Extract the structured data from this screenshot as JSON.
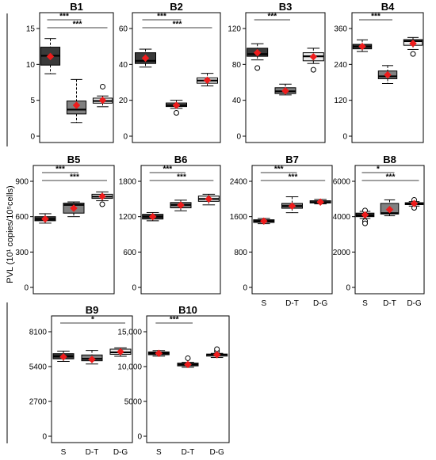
{
  "figure": {
    "ylabel": "PVL (10¹ copies/10⁵cells)"
  },
  "chart_data": [
    {
      "type": "box",
      "title": "B1",
      "ylim": [
        0,
        15
      ],
      "yticks": [
        0,
        5,
        10,
        15
      ],
      "yticklabels": [
        "0",
        "5",
        "10",
        "15"
      ],
      "categories": [],
      "boxes": [
        {
          "whislo": 8.7,
          "q1": 9.9,
          "med": 11.2,
          "q3": 12.4,
          "whishi": 13.6,
          "mean": 11.1,
          "outliers": [],
          "fill": "#3a3a3a"
        },
        {
          "whislo": 1.9,
          "q1": 3.1,
          "med": 3.7,
          "q3": 4.9,
          "whishi": 7.9,
          "mean": 4.3,
          "outliers": [],
          "fill": "#808080"
        },
        {
          "whislo": 4.1,
          "q1": 4.6,
          "med": 4.9,
          "q3": 5.3,
          "whishi": 5.6,
          "mean": 5.0,
          "outliers": [
            6.9
          ],
          "fill": "#e8e8e8"
        }
      ],
      "comparisons": [
        {
          "from": 0,
          "to": 1,
          "label": "***"
        },
        {
          "from": 0,
          "to": 2,
          "label": "***"
        }
      ]
    },
    {
      "type": "box",
      "title": "B2",
      "ylim": [
        0,
        60
      ],
      "yticks": [
        0,
        20,
        40,
        60
      ],
      "yticklabels": [
        "0",
        "20",
        "40",
        "60"
      ],
      "categories": [],
      "boxes": [
        {
          "whislo": 38.5,
          "q1": 40.5,
          "med": 42,
          "q3": 46.5,
          "whishi": 48.5,
          "mean": 43.5,
          "outliers": [],
          "fill": "#3a3a3a"
        },
        {
          "whislo": 15.5,
          "q1": 16.5,
          "med": 17.3,
          "q3": 18.5,
          "whishi": 20,
          "mean": 17.2,
          "outliers": [
            13
          ],
          "fill": "#808080"
        },
        {
          "whislo": 28,
          "q1": 29.5,
          "med": 31,
          "q3": 32.5,
          "whishi": 35,
          "mean": 31.2,
          "outliers": [],
          "fill": "#e8e8e8"
        }
      ],
      "comparisons": [
        {
          "from": 0,
          "to": 1,
          "label": "***"
        },
        {
          "from": 0,
          "to": 2,
          "label": "***"
        }
      ]
    },
    {
      "type": "box",
      "title": "B3",
      "ylim": [
        0,
        120
      ],
      "yticks": [
        0,
        40,
        80,
        120
      ],
      "yticklabels": [
        "0",
        "40",
        "80",
        "120"
      ],
      "categories": [],
      "boxes": [
        {
          "whislo": 85,
          "q1": 89,
          "med": 91.5,
          "q3": 98,
          "whishi": 103,
          "mean": 93,
          "outliers": [
            76
          ],
          "fill": "#3a3a3a"
        },
        {
          "whislo": 46,
          "q1": 47.5,
          "med": 50,
          "q3": 54,
          "whishi": 58,
          "mean": 50.5,
          "outliers": [],
          "fill": "#808080"
        },
        {
          "whislo": 81,
          "q1": 84,
          "med": 89,
          "q3": 93,
          "whishi": 98,
          "mean": 88.5,
          "outliers": [
            74
          ],
          "fill": "#e8e8e8"
        }
      ],
      "comparisons": [
        {
          "from": 0,
          "to": 1,
          "label": "***"
        }
      ]
    },
    {
      "type": "box",
      "title": "B4",
      "ylim": [
        0,
        360
      ],
      "yticks": [
        0,
        120,
        240,
        360
      ],
      "yticklabels": [
        "0",
        "120",
        "240",
        "360"
      ],
      "categories": [],
      "boxes": [
        {
          "whislo": 283,
          "q1": 292,
          "med": 300,
          "q3": 307,
          "whishi": 322,
          "mean": 300,
          "outliers": [],
          "fill": "#3a3a3a"
        },
        {
          "whislo": 176,
          "q1": 192,
          "med": 200,
          "q3": 218,
          "whishi": 236,
          "mean": 205,
          "outliers": [],
          "fill": "#808080"
        },
        {
          "whislo": 290,
          "q1": 304,
          "med": 318,
          "q3": 323,
          "whishi": 330,
          "mean": 310,
          "outliers": [
            275
          ],
          "fill": "#e8e8e8"
        }
      ],
      "comparisons": [
        {
          "from": 0,
          "to": 1,
          "label": "***"
        }
      ]
    },
    {
      "type": "box",
      "title": "B5",
      "ylim": [
        0,
        900
      ],
      "yticks": [
        0,
        300,
        600,
        900
      ],
      "yticklabels": [
        "0",
        "300",
        "600",
        "900"
      ],
      "categories": [],
      "boxes": [
        {
          "whislo": 545,
          "q1": 565,
          "med": 580,
          "q3": 600,
          "whishi": 625,
          "mean": 580,
          "outliers": [],
          "fill": "#3a3a3a"
        },
        {
          "whislo": 600,
          "q1": 630,
          "med": 700,
          "q3": 715,
          "whishi": 725,
          "mean": 672,
          "outliers": [],
          "fill": "#808080"
        },
        {
          "whislo": 735,
          "q1": 755,
          "med": 770,
          "q3": 790,
          "whishi": 810,
          "mean": 772,
          "outliers": [
            705
          ],
          "fill": "#e8e8e8"
        }
      ],
      "comparisons": [
        {
          "from": 0,
          "to": 1,
          "label": "***"
        },
        {
          "from": 0,
          "to": 2,
          "label": "***"
        }
      ]
    },
    {
      "type": "box",
      "title": "B6",
      "ylim": [
        0,
        1800
      ],
      "yticks": [
        0,
        600,
        1200,
        1800
      ],
      "yticklabels": [
        "0",
        "600",
        "1200",
        "1800"
      ],
      "categories": [],
      "boxes": [
        {
          "whislo": 1130,
          "q1": 1160,
          "med": 1200,
          "q3": 1240,
          "whishi": 1270,
          "mean": 1200,
          "outliers": [],
          "fill": "#3a3a3a"
        },
        {
          "whislo": 1300,
          "q1": 1350,
          "med": 1400,
          "q3": 1440,
          "whishi": 1480,
          "mean": 1395,
          "outliers": [],
          "fill": "#808080"
        },
        {
          "whislo": 1400,
          "q1": 1460,
          "med": 1500,
          "q3": 1550,
          "whishi": 1580,
          "mean": 1500,
          "outliers": [],
          "fill": "#e8e8e8"
        }
      ],
      "comparisons": [
        {
          "from": 0,
          "to": 1,
          "label": "***"
        },
        {
          "from": 0,
          "to": 2,
          "label": "***"
        }
      ]
    },
    {
      "type": "box",
      "title": "B7",
      "ylim": [
        0,
        2400
      ],
      "yticks": [
        0,
        800,
        1600,
        2400
      ],
      "yticklabels": [
        "0",
        "800",
        "1600",
        "2400"
      ],
      "categories": [
        "S",
        "D-T",
        "D-G"
      ],
      "boxes": [
        {
          "whislo": 1440,
          "q1": 1470,
          "med": 1500,
          "q3": 1530,
          "whishi": 1560,
          "mean": 1500,
          "outliers": [],
          "fill": "#3a3a3a"
        },
        {
          "whislo": 1690,
          "q1": 1790,
          "med": 1840,
          "q3": 1900,
          "whishi": 2050,
          "mean": 1840,
          "outliers": [],
          "fill": "#808080"
        },
        {
          "whislo": 1890,
          "q1": 1910,
          "med": 1930,
          "q3": 1960,
          "whishi": 1990,
          "mean": 1930,
          "outliers": [],
          "fill": "#e8e8e8"
        }
      ],
      "comparisons": [
        {
          "from": 0,
          "to": 1,
          "label": "***"
        },
        {
          "from": 0,
          "to": 2,
          "label": "***"
        }
      ]
    },
    {
      "type": "box",
      "title": "B8",
      "ylim": [
        0,
        6000
      ],
      "yticks": [
        0,
        2000,
        4000,
        6000
      ],
      "yticklabels": [
        "0",
        "2000",
        "4000",
        "6000"
      ],
      "categories": [
        "S",
        "D-T",
        "D-G"
      ],
      "boxes": [
        {
          "whislo": 3900,
          "q1": 4000,
          "med": 4080,
          "q3": 4200,
          "whishi": 4300,
          "mean": 4100,
          "outliers": [
            4350,
            3750,
            3620
          ],
          "fill": "#3a3a3a"
        },
        {
          "whislo": 4050,
          "q1": 4150,
          "med": 4200,
          "q3": 4750,
          "whishi": 4950,
          "mean": 4400,
          "outliers": [],
          "fill": "#808080"
        },
        {
          "whislo": 4600,
          "q1": 4680,
          "med": 4730,
          "q3": 4790,
          "whishi": 4850,
          "mean": 4740,
          "outliers": [
            4950,
            4500
          ],
          "fill": "#e8e8e8"
        }
      ],
      "comparisons": [
        {
          "from": 0,
          "to": 1,
          "label": "*"
        },
        {
          "from": 0,
          "to": 2,
          "label": "***"
        }
      ]
    },
    {
      "type": "box",
      "title": "B9",
      "ylim": [
        0,
        8100
      ],
      "yticks": [
        0,
        2700,
        5400,
        8100
      ],
      "yticklabels": [
        "0",
        "2700",
        "5400",
        "8100"
      ],
      "categories": [
        "S",
        "D-T",
        "D-G"
      ],
      "boxes": [
        {
          "whislo": 5800,
          "q1": 6000,
          "med": 6200,
          "q3": 6400,
          "whishi": 6600,
          "mean": 6150,
          "outliers": [],
          "fill": "#3a3a3a"
        },
        {
          "whislo": 5600,
          "q1": 5850,
          "med": 6000,
          "q3": 6300,
          "whishi": 6650,
          "mean": 5950,
          "outliers": [],
          "fill": "#808080"
        },
        {
          "whislo": 6200,
          "q1": 6350,
          "med": 6500,
          "q3": 6750,
          "whishi": 6850,
          "mean": 6550,
          "outliers": [],
          "fill": "#e8e8e8"
        }
      ],
      "comparisons": [
        {
          "from": 0,
          "to": 2,
          "label": "*"
        }
      ]
    },
    {
      "type": "box",
      "title": "B10",
      "ylim": [
        0,
        15000
      ],
      "yticks": [
        0,
        5000,
        10000,
        15000
      ],
      "yticklabels": [
        "0",
        "5000",
        "10,000",
        "15,000"
      ],
      "categories": [
        "S",
        "D-T",
        "D-G"
      ],
      "boxes": [
        {
          "whislo": 11500,
          "q1": 11700,
          "med": 11900,
          "q3": 12100,
          "whishi": 12300,
          "mean": 11900,
          "outliers": [],
          "fill": "#3a3a3a"
        },
        {
          "whislo": 9900,
          "q1": 10100,
          "med": 10300,
          "q3": 10500,
          "whishi": 10600,
          "mean": 10300,
          "outliers": [
            11200
          ],
          "fill": "#808080"
        },
        {
          "whislo": 11300,
          "q1": 11500,
          "med": 11700,
          "q3": 11800,
          "whishi": 11900,
          "mean": 11700,
          "outliers": [
            12200,
            12500
          ],
          "fill": "#e8e8e8"
        }
      ],
      "comparisons": [
        {
          "from": 0,
          "to": 1,
          "label": "***"
        }
      ]
    }
  ],
  "style": {
    "mean_color": "#ee1c1c",
    "axis_color": "#000000",
    "box_stroke": "#000000"
  }
}
